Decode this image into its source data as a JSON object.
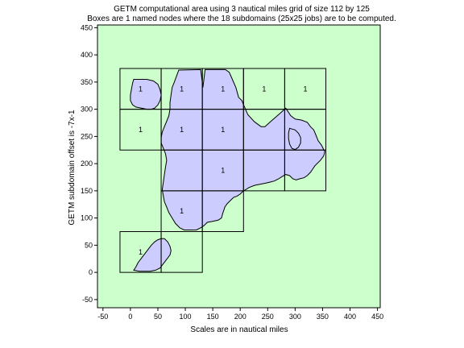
{
  "chart_data": {
    "type": "map",
    "title": "GETM computational area using 3 nautical miles grid of size  112 by 125",
    "subtitle": "Boxes are 1 named nodes where the 18 subdomains (25x25 jobs) are to be computed.",
    "xlabel": "Scales are in nautical miles",
    "ylabel": "GETM subdomain offset is -7x-1",
    "xlim": [
      -60,
      455
    ],
    "ylim": [
      -65,
      455
    ],
    "xticks": [
      -50,
      0,
      50,
      100,
      150,
      200,
      250,
      300,
      350,
      400,
      450
    ],
    "yticks": [
      -50,
      0,
      50,
      100,
      150,
      200,
      250,
      300,
      350,
      400,
      450
    ],
    "grid": false,
    "colors": {
      "background": "#ccffcc",
      "water": "#ccccff",
      "box": "#000000"
    },
    "subdomains": [
      {
        "x": [
          -19,
          56
        ],
        "y": [
          0,
          75
        ],
        "label": "1"
      },
      {
        "x": [
          56,
          131
        ],
        "y": [
          0,
          75
        ],
        "label": ""
      },
      {
        "x": [
          56,
          131
        ],
        "y": [
          75,
          150
        ],
        "label": "1"
      },
      {
        "x": [
          131,
          206
        ],
        "y": [
          75,
          150
        ],
        "label": ""
      },
      {
        "x": [
          56,
          131
        ],
        "y": [
          150,
          225
        ],
        "label": ""
      },
      {
        "x": [
          131,
          206
        ],
        "y": [
          150,
          225
        ],
        "label": "1"
      },
      {
        "x": [
          206,
          281
        ],
        "y": [
          150,
          225
        ],
        "label": ""
      },
      {
        "x": [
          281,
          356
        ],
        "y": [
          150,
          225
        ],
        "label": ""
      },
      {
        "x": [
          -19,
          56
        ],
        "y": [
          225,
          300
        ],
        "label": "1"
      },
      {
        "x": [
          56,
          131
        ],
        "y": [
          225,
          300
        ],
        "label": "1"
      },
      {
        "x": [
          131,
          206
        ],
        "y": [
          225,
          300
        ],
        "label": "1"
      },
      {
        "x": [
          206,
          281
        ],
        "y": [
          225,
          300
        ],
        "label": ""
      },
      {
        "x": [
          281,
          356
        ],
        "y": [
          225,
          300
        ],
        "label": ""
      },
      {
        "x": [
          -19,
          56
        ],
        "y": [
          300,
          375
        ],
        "label": "1"
      },
      {
        "x": [
          56,
          131
        ],
        "y": [
          300,
          375
        ],
        "label": "1"
      },
      {
        "x": [
          131,
          206
        ],
        "y": [
          300,
          375
        ],
        "label": "1"
      },
      {
        "x": [
          206,
          281
        ],
        "y": [
          300,
          375
        ],
        "label": "1"
      },
      {
        "x": [
          281,
          356
        ],
        "y": [
          300,
          375
        ],
        "label": "1"
      }
    ],
    "water_polygons": [
      {
        "name": "main-sea",
        "points": [
          [
            80,
            350
          ],
          [
            88,
            372
          ],
          [
            128,
            373
          ],
          [
            132,
            340
          ],
          [
            136,
            373
          ],
          [
            173,
            373
          ],
          [
            180,
            368
          ],
          [
            187,
            352
          ],
          [
            192,
            340
          ],
          [
            197,
            322
          ],
          [
            203,
            316
          ],
          [
            207,
            306
          ],
          [
            214,
            290
          ],
          [
            226,
            277
          ],
          [
            238,
            268
          ],
          [
            245,
            268
          ],
          [
            256,
            278
          ],
          [
            272,
            292
          ],
          [
            283,
            302
          ],
          [
            292,
            288
          ],
          [
            300,
            282
          ],
          [
            312,
            280
          ],
          [
            322,
            276
          ],
          [
            328,
            268
          ],
          [
            334,
            262
          ],
          [
            338,
            252
          ],
          [
            342,
            242
          ],
          [
            348,
            234
          ],
          [
            352,
            226
          ],
          [
            354,
            222
          ],
          [
            352,
            214
          ],
          [
            346,
            206
          ],
          [
            340,
            200
          ],
          [
            336,
            196
          ],
          [
            332,
            190
          ],
          [
            328,
            184
          ],
          [
            322,
            178
          ],
          [
            316,
            174
          ],
          [
            308,
            172
          ],
          [
            302,
            170
          ],
          [
            296,
            172
          ],
          [
            290,
            178
          ],
          [
            283,
            180
          ],
          [
            276,
            176
          ],
          [
            270,
            172
          ],
          [
            262,
            168
          ],
          [
            254,
            166
          ],
          [
            246,
            164
          ],
          [
            236,
            162
          ],
          [
            226,
            160
          ],
          [
            216,
            156
          ],
          [
            210,
            152
          ],
          [
            206,
            150
          ],
          [
            200,
            144
          ],
          [
            194,
            140
          ],
          [
            188,
            138
          ],
          [
            182,
            132
          ],
          [
            176,
            126
          ],
          [
            172,
            120
          ],
          [
            170,
            114
          ],
          [
            168,
            108
          ],
          [
            166,
            100
          ],
          [
            160,
            96
          ],
          [
            150,
            94
          ],
          [
            140,
            92
          ],
          [
            134,
            86
          ],
          [
            128,
            82
          ],
          [
            120,
            78
          ],
          [
            108,
            78
          ],
          [
            98,
            78
          ],
          [
            90,
            82
          ],
          [
            82,
            90
          ],
          [
            76,
            100
          ],
          [
            70,
            110
          ],
          [
            66,
            120
          ],
          [
            62,
            130
          ],
          [
            60,
            140
          ],
          [
            58,
            152
          ],
          [
            60,
            166
          ],
          [
            62,
            180
          ],
          [
            64,
            194
          ],
          [
            66,
            206
          ],
          [
            64,
            218
          ],
          [
            60,
            228
          ],
          [
            56,
            238
          ],
          [
            56,
            248
          ],
          [
            58,
            258
          ],
          [
            62,
            268
          ],
          [
            66,
            278
          ],
          [
            70,
            288
          ],
          [
            72,
            300
          ],
          [
            72,
            312
          ],
          [
            74,
            326
          ],
          [
            76,
            340
          ]
        ]
      },
      {
        "name": "west-gulf",
        "points": [
          [
            6,
            355
          ],
          [
            30,
            355
          ],
          [
            42,
            352
          ],
          [
            50,
            346
          ],
          [
            54,
            336
          ],
          [
            56,
            326
          ],
          [
            54,
            316
          ],
          [
            50,
            308
          ],
          [
            44,
            302
          ],
          [
            38,
            300
          ],
          [
            30,
            300
          ],
          [
            20,
            302
          ],
          [
            10,
            304
          ],
          [
            4,
            308
          ],
          [
            0,
            316
          ],
          [
            0,
            326
          ],
          [
            2,
            338
          ],
          [
            4,
            348
          ]
        ]
      },
      {
        "name": "south-basin",
        "points": [
          [
            6,
            4
          ],
          [
            10,
            10
          ],
          [
            14,
            18
          ],
          [
            20,
            26
          ],
          [
            26,
            34
          ],
          [
            32,
            42
          ],
          [
            38,
            50
          ],
          [
            44,
            56
          ],
          [
            50,
            60
          ],
          [
            56,
            62
          ],
          [
            62,
            62
          ],
          [
            68,
            56
          ],
          [
            72,
            48
          ],
          [
            74,
            40
          ],
          [
            72,
            32
          ],
          [
            66,
            24
          ],
          [
            60,
            16
          ],
          [
            54,
            8
          ],
          [
            46,
            4
          ],
          [
            36,
            2
          ],
          [
            26,
            2
          ],
          [
            16,
            2
          ]
        ]
      },
      {
        "name": "east-lagoon",
        "points": [
          [
            290,
            265
          ],
          [
            300,
            262
          ],
          [
            306,
            256
          ],
          [
            310,
            248
          ],
          [
            310,
            238
          ],
          [
            306,
            230
          ],
          [
            300,
            226
          ],
          [
            294,
            228
          ],
          [
            290,
            236
          ],
          [
            288,
            246
          ],
          [
            288,
            256
          ]
        ]
      }
    ]
  }
}
